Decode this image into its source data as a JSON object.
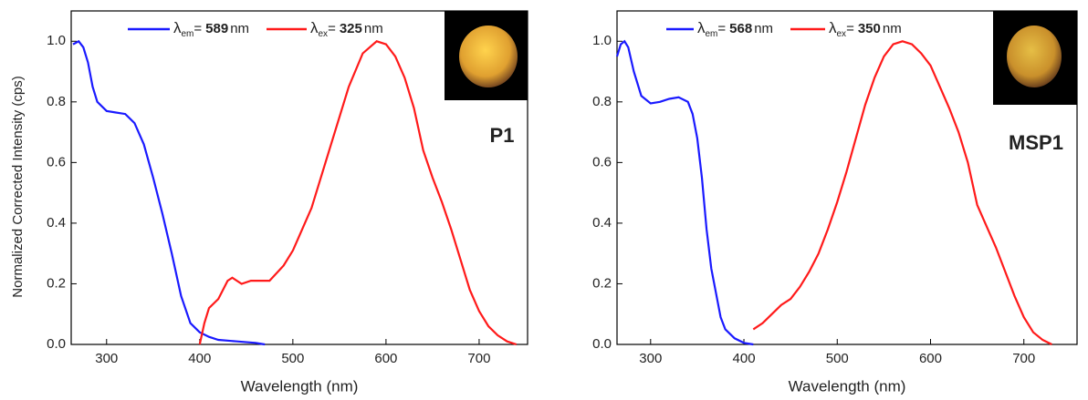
{
  "chart_data": [
    {
      "type": "line",
      "xlabel": "Wavelength (nm)",
      "ylabel": "Normalized Corrected Intensity (cps)",
      "annotation": "P1",
      "xlim": [
        262,
        752
      ],
      "ylim": [
        0,
        1.1
      ],
      "xticks": [
        300,
        400,
        500,
        600,
        700
      ],
      "yticks": [
        {
          "value": 0,
          "label": "0.0"
        },
        0.2,
        0.4,
        0.6,
        0.8,
        {
          "value": 1,
          "label": "1.0"
        }
      ],
      "series": [
        {
          "name": {
            "symbol": "λ",
            "subscript": "em",
            "equals": "=",
            "value": 589,
            "unit": "nm"
          },
          "color": "#1a1aff",
          "x": [
            264,
            270,
            275,
            280,
            285,
            290,
            300,
            310,
            320,
            330,
            340,
            350,
            360,
            370,
            380,
            390,
            400,
            410,
            420,
            440,
            460,
            470
          ],
          "values": [
            0.99,
            1.0,
            0.98,
            0.93,
            0.85,
            0.8,
            0.77,
            0.765,
            0.76,
            0.73,
            0.66,
            0.55,
            0.43,
            0.3,
            0.16,
            0.07,
            0.04,
            0.025,
            0.015,
            0.01,
            0.005,
            0.0
          ]
        },
        {
          "name": {
            "symbol": "λ",
            "subscript": "ex",
            "equals": "=",
            "value": 325,
            "unit": "nm"
          },
          "color": "#ff1a1a",
          "x": [
            400,
            405,
            410,
            420,
            430,
            435,
            445,
            455,
            465,
            475,
            490,
            500,
            520,
            540,
            560,
            575,
            590,
            600,
            610,
            620,
            630,
            640,
            650,
            660,
            670,
            680,
            690,
            700,
            710,
            720,
            730,
            740
          ],
          "values": [
            0.0,
            0.07,
            0.12,
            0.15,
            0.21,
            0.22,
            0.2,
            0.21,
            0.21,
            0.21,
            0.26,
            0.31,
            0.45,
            0.65,
            0.85,
            0.96,
            1.0,
            0.99,
            0.95,
            0.88,
            0.78,
            0.64,
            0.55,
            0.47,
            0.38,
            0.28,
            0.18,
            0.11,
            0.06,
            0.03,
            0.01,
            0.0
          ]
        }
      ]
    },
    {
      "type": "line",
      "xlabel": "Wavelength (nm)",
      "annotation": "MSP1",
      "xlim": [
        264,
        757
      ],
      "ylim": [
        0,
        1.1
      ],
      "xticks": [
        300,
        400,
        500,
        600,
        700
      ],
      "yticks": [
        {
          "value": 0,
          "label": "0.0"
        },
        0.2,
        0.4,
        0.6,
        0.8,
        {
          "value": 1,
          "label": "1.0"
        }
      ],
      "series": [
        {
          "name": {
            "symbol": "λ",
            "subscript": "em",
            "equals": "=",
            "value": 568,
            "unit": "nm"
          },
          "color": "#1a1aff",
          "x": [
            264,
            268,
            272,
            276,
            282,
            290,
            300,
            310,
            320,
            330,
            340,
            345,
            350,
            355,
            360,
            365,
            370,
            375,
            380,
            390,
            400,
            410
          ],
          "values": [
            0.95,
            0.99,
            1.0,
            0.98,
            0.9,
            0.82,
            0.795,
            0.8,
            0.81,
            0.815,
            0.8,
            0.76,
            0.68,
            0.55,
            0.38,
            0.25,
            0.17,
            0.09,
            0.05,
            0.02,
            0.005,
            0.0
          ]
        },
        {
          "name": {
            "symbol": "λ",
            "subscript": "ex",
            "equals": "=",
            "value": 350,
            "unit": "nm"
          },
          "color": "#ff1a1a",
          "x": [
            410,
            420,
            430,
            440,
            450,
            460,
            470,
            480,
            490,
            500,
            510,
            520,
            530,
            540,
            550,
            560,
            570,
            580,
            590,
            600,
            610,
            620,
            630,
            640,
            650,
            660,
            670,
            680,
            690,
            700,
            710,
            720,
            730
          ],
          "values": [
            0.05,
            0.07,
            0.1,
            0.13,
            0.15,
            0.19,
            0.24,
            0.3,
            0.38,
            0.47,
            0.57,
            0.68,
            0.79,
            0.88,
            0.95,
            0.99,
            1.0,
            0.99,
            0.96,
            0.92,
            0.85,
            0.78,
            0.7,
            0.6,
            0.46,
            0.39,
            0.32,
            0.24,
            0.16,
            0.09,
            0.04,
            0.015,
            0.0
          ]
        }
      ]
    }
  ]
}
